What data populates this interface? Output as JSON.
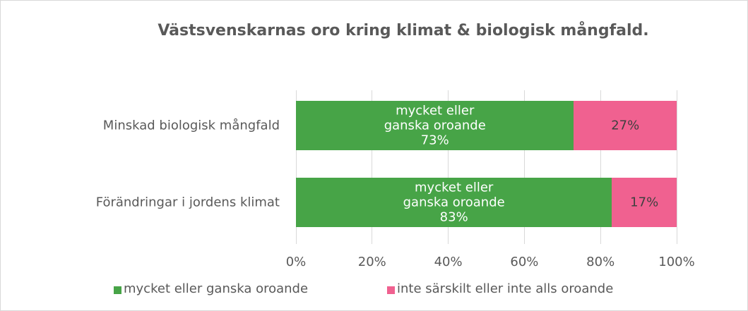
{
  "chart_data": {
    "type": "bar",
    "orientation": "horizontal",
    "stacked": true,
    "title": "Västsvenskarnas oro kring klimat & biologisk mångfald.",
    "categories": [
      "Minskad biologisk mångfald",
      "Förändringar i jordens klimat"
    ],
    "series": [
      {
        "name": "mycket eller ganska oroande",
        "color": "#47a447",
        "values": [
          73,
          83
        ],
        "value_labels": [
          "mycket eller\nganska oroande\n73%",
          "mycket eller\nganska oroande\n83%"
        ]
      },
      {
        "name": "inte särskilt eller inte alls oroande",
        "color": "#f06190",
        "values": [
          27,
          17
        ],
        "value_labels": [
          "27%",
          "17%"
        ]
      }
    ],
    "xlim": [
      0,
      100
    ],
    "xticks": [
      {
        "value": 0,
        "label": "0%"
      },
      {
        "value": 20,
        "label": "20%"
      },
      {
        "value": 40,
        "label": "40%"
      },
      {
        "value": 60,
        "label": "60%"
      },
      {
        "value": 80,
        "label": "80%"
      },
      {
        "value": 100,
        "label": "100%"
      }
    ],
    "grid": true,
    "legend": "bottom"
  }
}
